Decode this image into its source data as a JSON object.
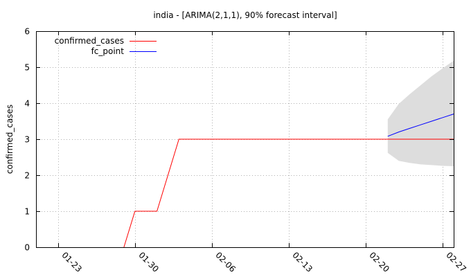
{
  "chart_data": {
    "type": "line",
    "title": "india -  [ARIMA(2,1,1), 90% forecast interval]",
    "xlabel": "",
    "ylabel": "confirmed_cases",
    "x_type": "date",
    "xlim": [
      "2020-01-21",
      "2020-02-28"
    ],
    "ylim": [
      0,
      6
    ],
    "y_ticks": [
      0,
      1,
      2,
      3,
      4,
      5,
      6
    ],
    "x_ticks": [
      {
        "date": "2020-01-23",
        "label": "01-23"
      },
      {
        "date": "2020-01-30",
        "label": "01-30"
      },
      {
        "date": "2020-02-06",
        "label": "02-06"
      },
      {
        "date": "2020-02-13",
        "label": "02-13"
      },
      {
        "date": "2020-02-20",
        "label": "02-20"
      },
      {
        "date": "2020-02-27",
        "label": "02-27"
      }
    ],
    "grid": true,
    "legend_position": "top-left",
    "series": [
      {
        "name": "confirmed_cases",
        "color": "#ff0000",
        "points": [
          [
            "2020-01-29",
            0
          ],
          [
            "2020-01-30",
            1
          ],
          [
            "2020-02-01",
            1
          ],
          [
            "2020-02-03",
            3
          ],
          [
            "2020-02-28",
            3
          ]
        ]
      },
      {
        "name": "fc_point",
        "color": "#0000ff",
        "points": [
          [
            "2020-02-22",
            3.08
          ],
          [
            "2020-02-23",
            3.2
          ],
          [
            "2020-02-24",
            3.3
          ],
          [
            "2020-02-25",
            3.4
          ],
          [
            "2020-02-26",
            3.5
          ],
          [
            "2020-02-27",
            3.6
          ],
          [
            "2020-02-28",
            3.7
          ]
        ]
      }
    ],
    "forecast_interval": {
      "color": "#dddddd",
      "points": [
        [
          "2020-02-22",
          2.62,
          3.55
        ],
        [
          "2020-02-23",
          2.4,
          3.98
        ],
        [
          "2020-02-24",
          2.34,
          4.25
        ],
        [
          "2020-02-25",
          2.3,
          4.5
        ],
        [
          "2020-02-26",
          2.28,
          4.75
        ],
        [
          "2020-02-27",
          2.26,
          4.97
        ],
        [
          "2020-02-28",
          2.25,
          5.18
        ]
      ]
    }
  }
}
